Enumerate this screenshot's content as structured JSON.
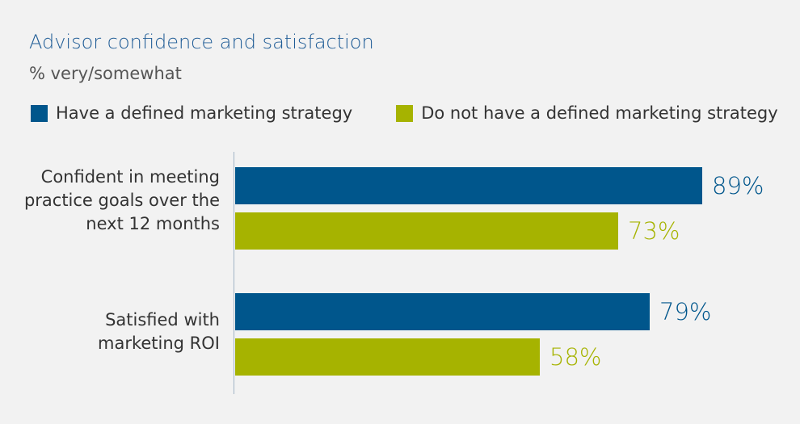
{
  "chart_data": {
    "type": "bar",
    "orientation": "horizontal",
    "title": "Advisor confidence and satisfaction",
    "subtitle": "% very/somewhat",
    "categories": [
      "Confident in meeting practice goals over the next 12 months",
      "Satisfied with marketing ROI"
    ],
    "category_lines": [
      [
        "Confident in meeting",
        "practice goals over the",
        "next 12 months"
      ],
      [
        "Satisfied with",
        "marketing ROI"
      ]
    ],
    "series": [
      {
        "name": "Have a defined marketing strategy",
        "color": "#00568c",
        "values": [
          89,
          79
        ],
        "labels": [
          "89%",
          "79%"
        ]
      },
      {
        "name": "Do not have a defined marketing strategy",
        "color": "#a6b300",
        "values": [
          73,
          58
        ],
        "labels": [
          "73%",
          "58%"
        ]
      }
    ],
    "xlim": [
      0,
      100
    ],
    "grid": false,
    "legend_position": "top-left"
  }
}
